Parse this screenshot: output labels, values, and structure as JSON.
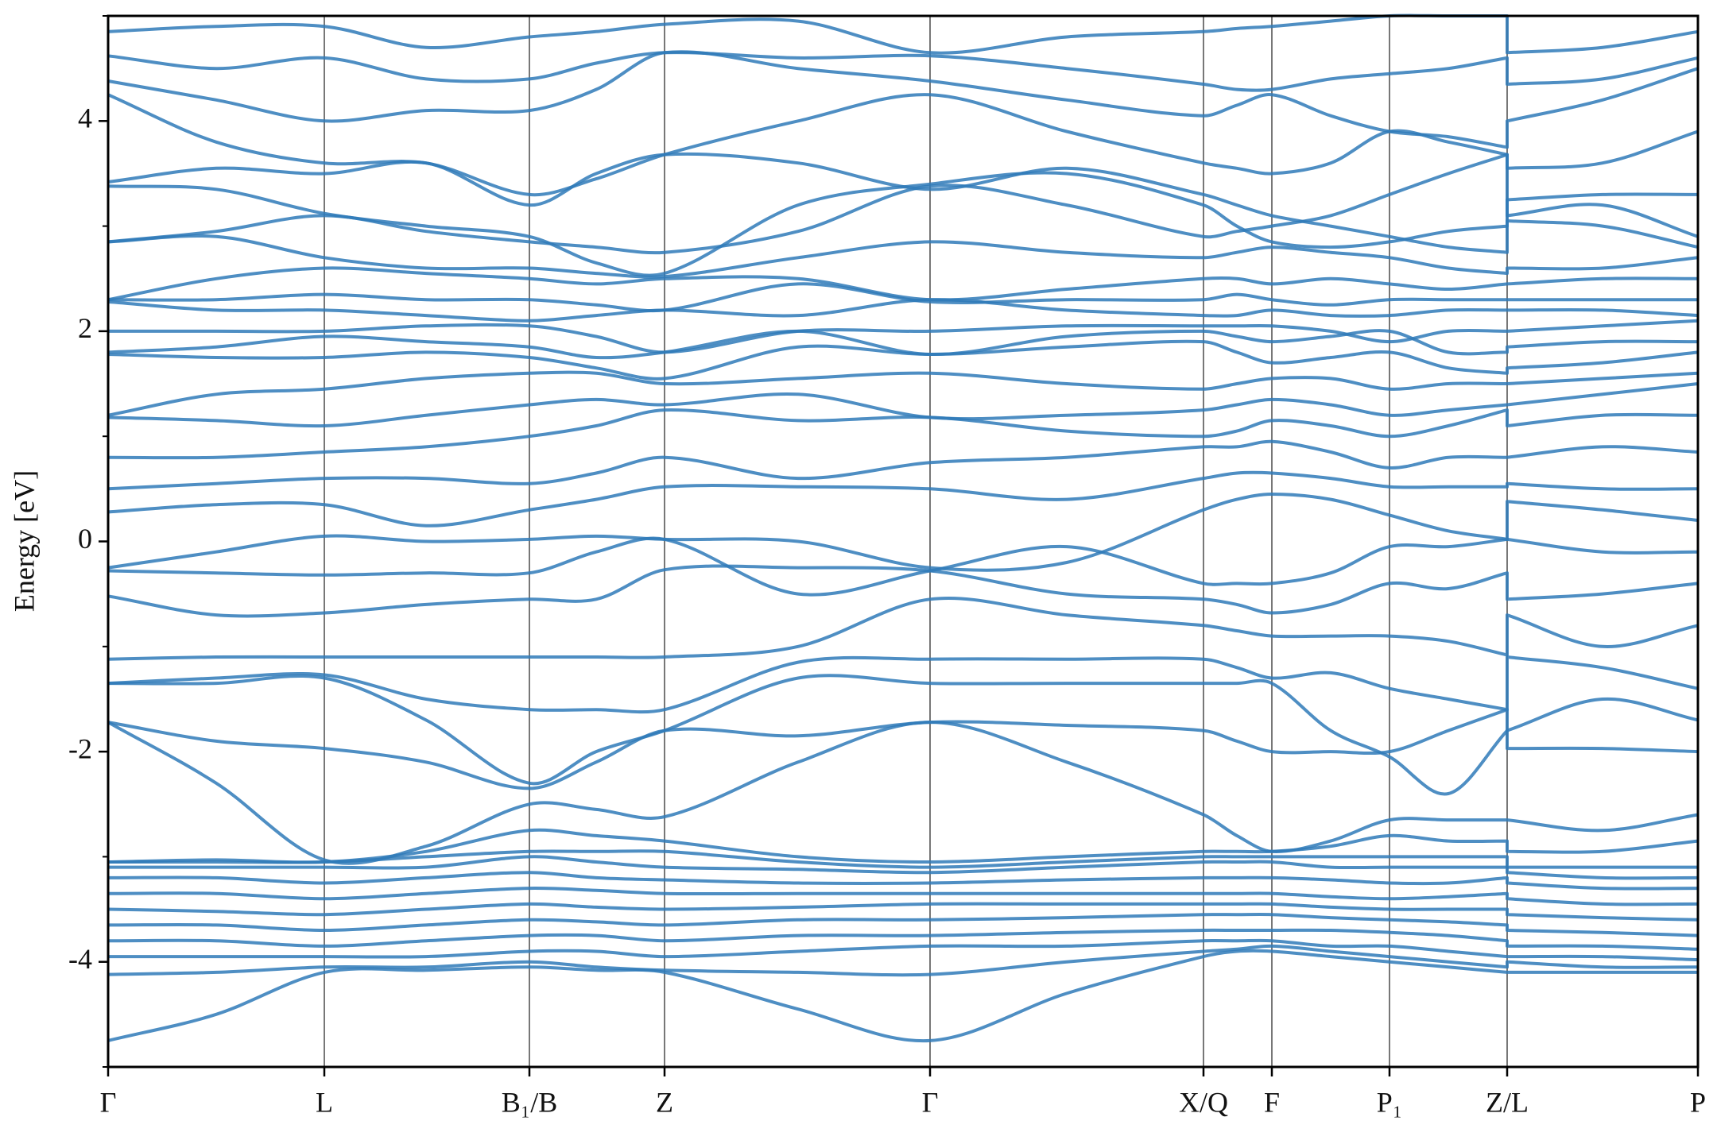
{
  "chart_data": {
    "type": "line",
    "ylabel": "Energy [eV]",
    "color": "#2f7ab8",
    "xlim": [
      0,
      1
    ],
    "xticks": [
      {
        "value": 0,
        "label": "Γ"
      },
      {
        "value": 0.136,
        "label": "L"
      },
      {
        "value": 0.265,
        "label": "B₁/B"
      },
      {
        "value": 0.35,
        "label": "Z"
      },
      {
        "value": 0.517,
        "label": "Γ"
      },
      {
        "value": 0.689,
        "label": "X/Q"
      },
      {
        "value": 0.732,
        "label": "F"
      },
      {
        "value": 0.806,
        "label": "P₁"
      },
      {
        "value": 0.88,
        "label": "Z/L"
      },
      {
        "value": 1,
        "label": "P"
      }
    ],
    "ylim": [
      -5,
      5
    ],
    "yticks": [
      -4,
      -2,
      0,
      2,
      4
    ],
    "yminorticks": [
      -5,
      -3,
      -1,
      1,
      3,
      5
    ],
    "x": [
      0,
      0.068,
      0.136,
      0.2,
      0.265,
      0.307,
      0.35,
      0.434,
      0.517,
      0.603,
      0.689,
      0.71,
      0.732,
      0.769,
      0.806,
      0.843,
      0.88,
      0.88,
      0.94,
      1
    ],
    "series": [
      {
        "values": [
          -4.75,
          -4.5,
          -4.1,
          -4.08,
          -4.05,
          -4.08,
          -4.1,
          -4.45,
          -4.75,
          -4.3,
          -3.95,
          -3.9,
          -3.9,
          -3.95,
          -4.0,
          -4.05,
          -4.1,
          -4.1,
          -4.1,
          -4.1
        ]
      },
      {
        "values": [
          -4.12,
          -4.1,
          -4.05,
          -4.05,
          -4.0,
          -4.05,
          -4.08,
          -4.1,
          -4.12,
          -4.0,
          -3.9,
          -3.88,
          -3.85,
          -3.9,
          -3.95,
          -4.0,
          -4.05,
          -4.0,
          -4.05,
          -4.05
        ]
      },
      {
        "values": [
          -3.95,
          -3.95,
          -3.95,
          -3.95,
          -3.9,
          -3.9,
          -3.95,
          -3.9,
          -3.85,
          -3.85,
          -3.8,
          -3.8,
          -3.8,
          -3.85,
          -3.85,
          -3.9,
          -3.95,
          -3.95,
          -3.95,
          -3.98
        ]
      },
      {
        "values": [
          -3.8,
          -3.8,
          -3.85,
          -3.8,
          -3.75,
          -3.75,
          -3.8,
          -3.75,
          -3.75,
          -3.72,
          -3.7,
          -3.7,
          -3.7,
          -3.7,
          -3.72,
          -3.75,
          -3.8,
          -3.85,
          -3.85,
          -3.88
        ]
      },
      {
        "values": [
          -3.65,
          -3.65,
          -3.7,
          -3.65,
          -3.6,
          -3.62,
          -3.65,
          -3.6,
          -3.6,
          -3.58,
          -3.55,
          -3.55,
          -3.55,
          -3.58,
          -3.6,
          -3.62,
          -3.65,
          -3.7,
          -3.72,
          -3.75
        ]
      },
      {
        "values": [
          -3.5,
          -3.52,
          -3.55,
          -3.5,
          -3.45,
          -3.48,
          -3.5,
          -3.48,
          -3.45,
          -3.45,
          -3.45,
          -3.45,
          -3.45,
          -3.48,
          -3.5,
          -3.5,
          -3.5,
          -3.55,
          -3.58,
          -3.6
        ]
      },
      {
        "values": [
          -3.35,
          -3.35,
          -3.4,
          -3.35,
          -3.3,
          -3.32,
          -3.35,
          -3.35,
          -3.35,
          -3.35,
          -3.35,
          -3.35,
          -3.35,
          -3.38,
          -3.4,
          -3.38,
          -3.35,
          -3.4,
          -3.45,
          -3.45
        ]
      },
      {
        "values": [
          -3.2,
          -3.2,
          -3.25,
          -3.2,
          -3.15,
          -3.2,
          -3.22,
          -3.25,
          -3.25,
          -3.22,
          -3.2,
          -3.2,
          -3.2,
          -3.22,
          -3.25,
          -3.25,
          -3.2,
          -3.25,
          -3.3,
          -3.3
        ]
      },
      {
        "values": [
          -3.1,
          -3.1,
          -3.1,
          -3.1,
          -3.0,
          -3.05,
          -3.1,
          -3.12,
          -3.15,
          -3.1,
          -3.05,
          -3.05,
          -3.05,
          -3.1,
          -3.1,
          -3.1,
          -3.1,
          -3.15,
          -3.2,
          -3.2
        ]
      },
      {
        "values": [
          -3.05,
          -3.05,
          -3.05,
          -3.0,
          -2.95,
          -2.95,
          -2.95,
          -3.05,
          -3.1,
          -3.05,
          -3.0,
          -3.0,
          -3.0,
          -3.0,
          -3.0,
          -3.0,
          -3.0,
          -3.1,
          -3.1,
          -3.1
        ]
      },
      {
        "values": [
          -3.05,
          -3.03,
          -3.05,
          -2.95,
          -2.75,
          -2.8,
          -2.85,
          -3.0,
          -3.05,
          -3.0,
          -2.95,
          -2.95,
          -2.95,
          -2.9,
          -2.8,
          -2.85,
          -2.85,
          -2.95,
          -2.95,
          -2.85
        ]
      },
      {
        "values": [
          -1.72,
          -2.3,
          -3.03,
          -2.9,
          -2.5,
          -2.55,
          -2.62,
          -2.1,
          -1.72,
          -2.1,
          -2.6,
          -2.8,
          -2.95,
          -2.85,
          -2.65,
          -2.65,
          -2.65,
          -2.65,
          -2.75,
          -2.6
        ]
      },
      {
        "values": [
          -1.72,
          -1.9,
          -1.97,
          -2.1,
          -2.35,
          -2.1,
          -1.8,
          -1.85,
          -1.72,
          -1.75,
          -1.8,
          -1.9,
          -2.0,
          -2.0,
          -2.0,
          -1.8,
          -1.6,
          -1.97,
          -1.97,
          -2.0
        ]
      },
      {
        "values": [
          -1.35,
          -1.35,
          -1.3,
          -1.7,
          -2.3,
          -2.0,
          -1.8,
          -1.3,
          -1.35,
          -1.35,
          -1.35,
          -1.35,
          -1.35,
          -1.8,
          -2.05,
          -2.4,
          -1.8,
          -1.8,
          -1.5,
          -1.7
        ]
      },
      {
        "values": [
          -1.35,
          -1.3,
          -1.27,
          -1.5,
          -1.6,
          -1.6,
          -1.6,
          -1.15,
          -1.12,
          -1.12,
          -1.12,
          -1.2,
          -1.3,
          -1.25,
          -1.4,
          -1.5,
          -1.6,
          -1.1,
          -1.2,
          -1.4
        ]
      },
      {
        "values": [
          -1.12,
          -1.1,
          -1.1,
          -1.1,
          -1.1,
          -1.1,
          -1.1,
          -1.0,
          -0.55,
          -0.7,
          -0.8,
          -0.85,
          -0.9,
          -0.9,
          -0.9,
          -0.95,
          -1.08,
          -0.7,
          -1.0,
          -0.8
        ]
      },
      {
        "values": [
          -0.52,
          -0.7,
          -0.68,
          -0.6,
          -0.55,
          -0.55,
          -0.27,
          -0.25,
          -0.28,
          -0.5,
          -0.55,
          -0.6,
          -0.68,
          -0.6,
          -0.4,
          -0.45,
          -0.3,
          -0.55,
          -0.5,
          -0.4
        ]
      },
      {
        "values": [
          -0.28,
          -0.3,
          -0.32,
          -0.3,
          -0.3,
          -0.1,
          0.02,
          -0.5,
          -0.28,
          -0.05,
          -0.4,
          -0.4,
          -0.4,
          -0.3,
          -0.05,
          -0.05,
          0.02,
          0.02,
          -0.1,
          -0.1
        ]
      },
      {
        "values": [
          -0.25,
          -0.1,
          0.05,
          0.0,
          0.02,
          0.05,
          0.02,
          0.0,
          -0.25,
          -0.2,
          0.3,
          0.4,
          0.45,
          0.4,
          0.25,
          0.1,
          0.02,
          0.38,
          0.3,
          0.2
        ]
      },
      {
        "values": [
          0.28,
          0.35,
          0.35,
          0.15,
          0.3,
          0.4,
          0.52,
          0.52,
          0.5,
          0.4,
          0.6,
          0.65,
          0.65,
          0.6,
          0.52,
          0.52,
          0.52,
          0.55,
          0.5,
          0.5
        ]
      },
      {
        "values": [
          0.5,
          0.55,
          0.6,
          0.6,
          0.55,
          0.65,
          0.8,
          0.6,
          0.75,
          0.8,
          0.9,
          0.9,
          0.95,
          0.85,
          0.7,
          0.8,
          0.8,
          0.8,
          0.9,
          0.85
        ]
      },
      {
        "values": [
          0.8,
          0.8,
          0.85,
          0.9,
          1.0,
          1.1,
          1.25,
          1.15,
          1.18,
          1.05,
          1.0,
          1.05,
          1.15,
          1.1,
          1.0,
          1.1,
          1.25,
          1.1,
          1.2,
          1.2
        ]
      },
      {
        "values": [
          1.18,
          1.15,
          1.1,
          1.2,
          1.3,
          1.35,
          1.3,
          1.4,
          1.18,
          1.2,
          1.25,
          1.3,
          1.35,
          1.3,
          1.2,
          1.25,
          1.3,
          1.3,
          1.4,
          1.5
        ]
      },
      {
        "values": [
          1.2,
          1.4,
          1.45,
          1.55,
          1.6,
          1.6,
          1.5,
          1.55,
          1.6,
          1.5,
          1.45,
          1.5,
          1.55,
          1.55,
          1.45,
          1.5,
          1.5,
          1.5,
          1.55,
          1.6
        ]
      },
      {
        "values": [
          1.78,
          1.75,
          1.75,
          1.8,
          1.75,
          1.65,
          1.55,
          1.85,
          1.78,
          1.85,
          1.9,
          1.8,
          1.7,
          1.75,
          1.8,
          1.65,
          1.6,
          1.65,
          1.7,
          1.8
        ]
      },
      {
        "values": [
          1.8,
          1.85,
          1.95,
          1.9,
          1.85,
          1.75,
          1.8,
          2.0,
          1.78,
          1.95,
          2.0,
          1.95,
          1.9,
          1.95,
          2.0,
          1.8,
          1.8,
          1.85,
          1.9,
          1.9
        ]
      },
      {
        "values": [
          2.0,
          2.0,
          2.0,
          2.05,
          2.05,
          1.95,
          1.8,
          2.0,
          2.0,
          2.05,
          2.05,
          2.05,
          2.05,
          2.0,
          1.9,
          2.0,
          2.0,
          2.0,
          2.05,
          2.1
        ]
      },
      {
        "values": [
          2.28,
          2.2,
          2.2,
          2.15,
          2.1,
          2.15,
          2.2,
          2.15,
          2.3,
          2.2,
          2.15,
          2.15,
          2.2,
          2.15,
          2.15,
          2.2,
          2.2,
          2.2,
          2.2,
          2.15
        ]
      },
      {
        "values": [
          2.3,
          2.3,
          2.35,
          2.3,
          2.3,
          2.25,
          2.2,
          2.45,
          2.28,
          2.3,
          2.3,
          2.35,
          2.3,
          2.25,
          2.3,
          2.3,
          2.3,
          2.3,
          2.3,
          2.3
        ]
      },
      {
        "values": [
          2.3,
          2.5,
          2.6,
          2.55,
          2.5,
          2.45,
          2.5,
          2.5,
          2.3,
          2.4,
          2.5,
          2.5,
          2.45,
          2.5,
          2.45,
          2.4,
          2.45,
          2.45,
          2.5,
          2.5
        ]
      },
      {
        "values": [
          2.85,
          2.9,
          2.7,
          2.6,
          2.6,
          2.55,
          2.52,
          2.7,
          2.85,
          2.75,
          2.7,
          2.75,
          2.8,
          2.75,
          2.7,
          2.6,
          2.55,
          2.6,
          2.6,
          2.7
        ]
      },
      {
        "values": [
          2.85,
          2.95,
          3.1,
          2.95,
          2.85,
          2.8,
          2.75,
          2.95,
          3.38,
          3.2,
          2.9,
          2.95,
          3.0,
          3.1,
          3.3,
          3.5,
          3.68,
          3.1,
          3.2,
          2.9
        ]
      },
      {
        "values": [
          3.38,
          3.35,
          3.12,
          3.0,
          2.9,
          2.65,
          2.55,
          3.2,
          3.4,
          3.5,
          3.2,
          3.0,
          2.85,
          2.8,
          2.85,
          2.95,
          3.0,
          3.05,
          3.0,
          2.8
        ]
      },
      {
        "values": [
          3.42,
          3.55,
          3.5,
          3.6,
          3.2,
          3.5,
          3.68,
          3.6,
          3.35,
          3.55,
          3.3,
          3.2,
          3.1,
          3.0,
          2.9,
          2.8,
          2.75,
          3.25,
          3.3,
          3.3
        ]
      },
      {
        "values": [
          4.25,
          3.8,
          3.6,
          3.6,
          3.3,
          3.45,
          3.68,
          4.0,
          4.25,
          3.9,
          3.6,
          3.55,
          3.5,
          3.6,
          3.9,
          3.8,
          3.68,
          3.55,
          3.6,
          3.9
        ]
      },
      {
        "values": [
          4.38,
          4.2,
          4.0,
          4.1,
          4.1,
          4.3,
          4.65,
          4.5,
          4.38,
          4.2,
          4.05,
          4.15,
          4.25,
          4.05,
          3.9,
          3.85,
          3.75,
          4.0,
          4.2,
          4.5
        ]
      },
      {
        "values": [
          4.62,
          4.5,
          4.6,
          4.4,
          4.4,
          4.55,
          4.65,
          4.6,
          4.62,
          4.5,
          4.35,
          4.3,
          4.3,
          4.4,
          4.45,
          4.5,
          4.6,
          4.35,
          4.4,
          4.6
        ]
      },
      {
        "values": [
          4.85,
          4.9,
          4.9,
          4.7,
          4.8,
          4.85,
          4.92,
          4.95,
          4.65,
          4.8,
          4.85,
          4.88,
          4.9,
          4.95,
          5.0,
          5.0,
          5.0,
          4.65,
          4.7,
          4.85
        ]
      }
    ]
  }
}
